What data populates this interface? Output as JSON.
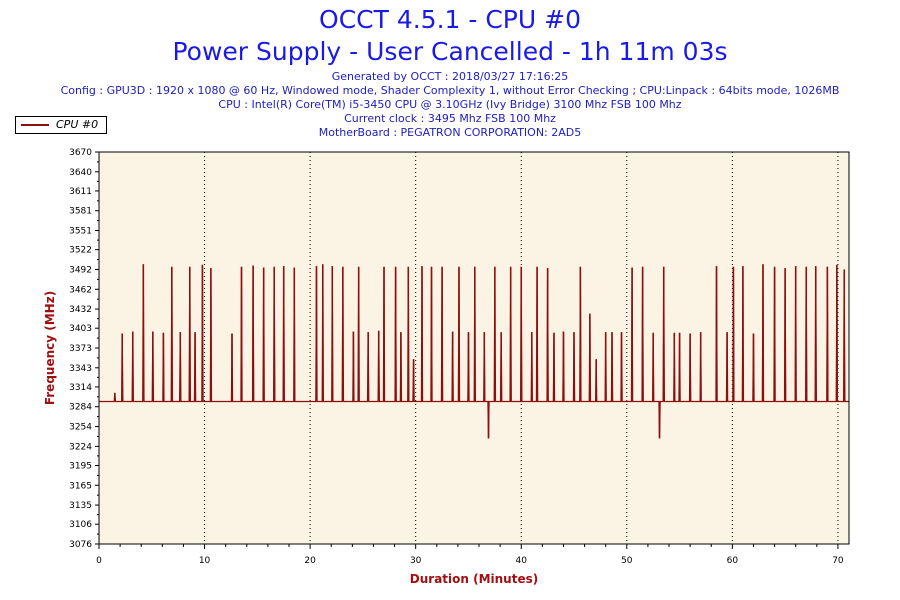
{
  "header": {
    "title": "OCCT 4.5.1 - CPU #0",
    "subtitle": "Power Supply - User Cancelled - 1h 11m 03s",
    "info": [
      "Generated by OCCT : 2018/03/27 17:16:25",
      "Config : GPU3D : 1920 x 1080 @ 60 Hz, Windowed mode, Shader Complexity 1, without Error Checking ; CPU:Linpack : 64bits mode, 1026MB",
      "CPU : Intel(R) Core(TM) i5-3450 CPU @ 3.10GHz (Ivy Bridge) 3100 Mhz FSB 100 Mhz",
      "Current clock : 3495 Mhz FSB 100 Mhz",
      "MotherBoard : PEGATRON CORPORATION: 2AD5"
    ]
  },
  "colors": {
    "series": "#8b1010",
    "plot_background": "#fbf3e4",
    "text_blue": "#1a1ae6",
    "axis_title": "#a01010"
  },
  "chart_data": {
    "type": "line",
    "xlabel": "Duration (Minutes)",
    "ylabel": "Frequency (MHz)",
    "xlim": [
      0,
      71.05
    ],
    "ylim": [
      3076,
      3670
    ],
    "x_ticks": [
      0,
      10,
      20,
      30,
      40,
      50,
      60,
      70
    ],
    "y_ticks": [
      3076,
      3106,
      3135,
      3165,
      3195,
      3224,
      3254,
      3284,
      3314,
      3343,
      3373,
      3403,
      3432,
      3462,
      3492,
      3522,
      3551,
      3581,
      3611,
      3640,
      3670
    ],
    "grid": "vertical-dotted",
    "legend_position": "top-left",
    "series": [
      {
        "name": "CPU #0",
        "baseline": 3292,
        "spikes": [
          {
            "x": 1.5,
            "y": 3305
          },
          {
            "x": 2.2,
            "y": 3395
          },
          {
            "x": 3.2,
            "y": 3398
          },
          {
            "x": 4.2,
            "y": 3500
          },
          {
            "x": 5.1,
            "y": 3398
          },
          {
            "x": 6.1,
            "y": 3396
          },
          {
            "x": 6.9,
            "y": 3496
          },
          {
            "x": 7.7,
            "y": 3397
          },
          {
            "x": 8.6,
            "y": 3496
          },
          {
            "x": 9.1,
            "y": 3397
          },
          {
            "x": 9.8,
            "y": 3499
          },
          {
            "x": 10.6,
            "y": 3494
          },
          {
            "x": 12.6,
            "y": 3395
          },
          {
            "x": 13.5,
            "y": 3496
          },
          {
            "x": 14.6,
            "y": 3498
          },
          {
            "x": 15.6,
            "y": 3495
          },
          {
            "x": 16.6,
            "y": 3496
          },
          {
            "x": 17.5,
            "y": 3497
          },
          {
            "x": 18.5,
            "y": 3495
          },
          {
            "x": 20.6,
            "y": 3497
          },
          {
            "x": 21.2,
            "y": 3500
          },
          {
            "x": 22.1,
            "y": 3497
          },
          {
            "x": 23.1,
            "y": 3496
          },
          {
            "x": 24.1,
            "y": 3398
          },
          {
            "x": 24.6,
            "y": 3496
          },
          {
            "x": 25.5,
            "y": 3397
          },
          {
            "x": 26.5,
            "y": 3399
          },
          {
            "x": 27.0,
            "y": 3496
          },
          {
            "x": 28.1,
            "y": 3496
          },
          {
            "x": 28.6,
            "y": 3397
          },
          {
            "x": 29.3,
            "y": 3496
          },
          {
            "x": 29.8,
            "y": 3356
          },
          {
            "x": 30.6,
            "y": 3497
          },
          {
            "x": 31.5,
            "y": 3496
          },
          {
            "x": 32.5,
            "y": 3496
          },
          {
            "x": 33.5,
            "y": 3398
          },
          {
            "x": 34.1,
            "y": 3496
          },
          {
            "x": 35.0,
            "y": 3397
          },
          {
            "x": 35.6,
            "y": 3496
          },
          {
            "x": 36.5,
            "y": 3397
          },
          {
            "x": 37.5,
            "y": 3496
          },
          {
            "x": 38.1,
            "y": 3397
          },
          {
            "x": 39.0,
            "y": 3496
          },
          {
            "x": 40.0,
            "y": 3496
          },
          {
            "x": 41.0,
            "y": 3397
          },
          {
            "x": 41.5,
            "y": 3496
          },
          {
            "x": 42.5,
            "y": 3494
          },
          {
            "x": 43.1,
            "y": 3396
          },
          {
            "x": 44.0,
            "y": 3398
          },
          {
            "x": 45.0,
            "y": 3397
          },
          {
            "x": 45.6,
            "y": 3496
          },
          {
            "x": 46.5,
            "y": 3425
          },
          {
            "x": 47.1,
            "y": 3356
          },
          {
            "x": 48.0,
            "y": 3397
          },
          {
            "x": 48.6,
            "y": 3397
          },
          {
            "x": 49.5,
            "y": 3397
          },
          {
            "x": 50.5,
            "y": 3495
          },
          {
            "x": 51.5,
            "y": 3496
          },
          {
            "x": 52.5,
            "y": 3396
          },
          {
            "x": 53.5,
            "y": 3496
          },
          {
            "x": 54.5,
            "y": 3396
          },
          {
            "x": 55.0,
            "y": 3396
          },
          {
            "x": 56.0,
            "y": 3395
          },
          {
            "x": 57.0,
            "y": 3397
          },
          {
            "x": 58.5,
            "y": 3497
          },
          {
            "x": 59.5,
            "y": 3397
          },
          {
            "x": 60.1,
            "y": 3496
          },
          {
            "x": 61.0,
            "y": 3497
          },
          {
            "x": 62.0,
            "y": 3395
          },
          {
            "x": 62.9,
            "y": 3500
          },
          {
            "x": 64.0,
            "y": 3496
          },
          {
            "x": 65.0,
            "y": 3494
          },
          {
            "x": 66.0,
            "y": 3497
          },
          {
            "x": 67.0,
            "y": 3496
          },
          {
            "x": 67.9,
            "y": 3497
          },
          {
            "x": 69.0,
            "y": 3496
          },
          {
            "x": 69.9,
            "y": 3499
          },
          {
            "x": 70.6,
            "y": 3492
          }
        ],
        "dips": [
          {
            "x": 36.9,
            "y": 3236
          },
          {
            "x": 53.1,
            "y": 3236
          }
        ]
      }
    ]
  }
}
